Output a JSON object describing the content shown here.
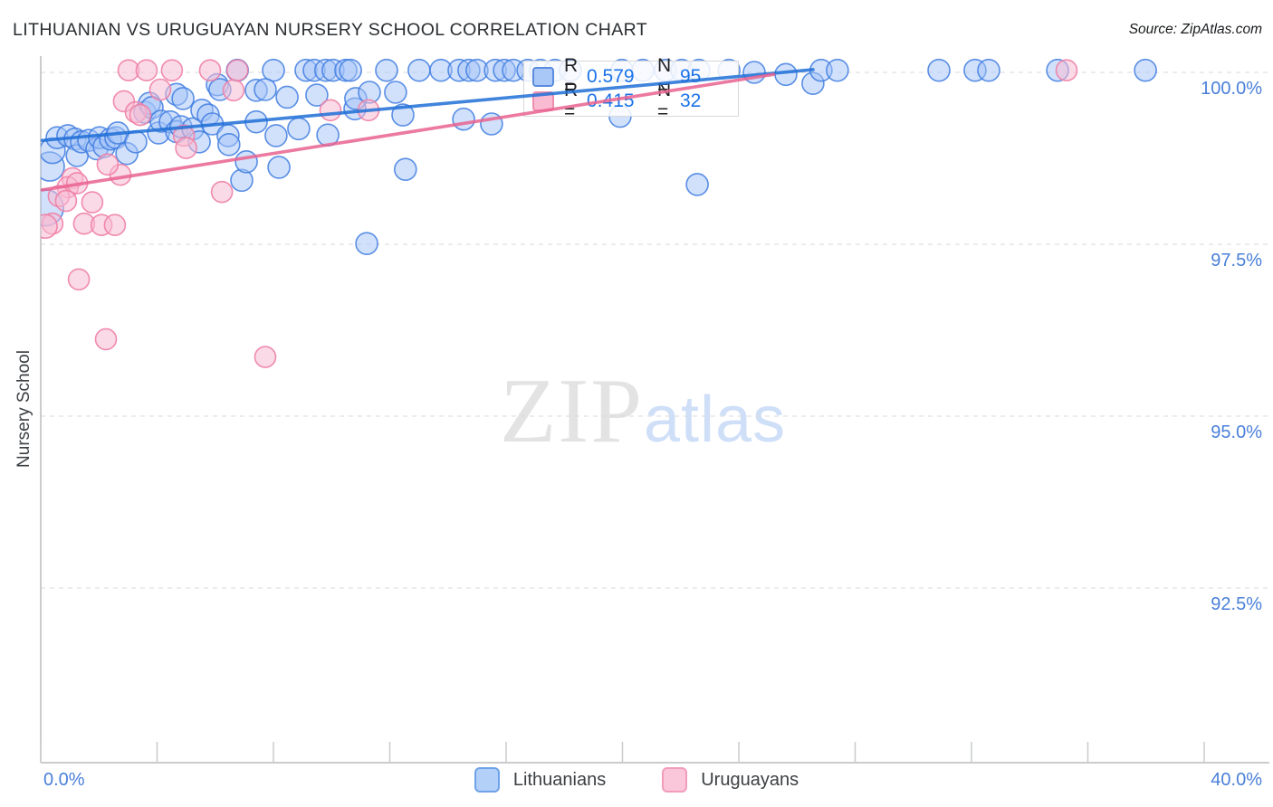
{
  "title": "LITHUANIAN VS URUGUAYAN NURSERY SCHOOL CORRELATION CHART",
  "source": "Source: ZipAtlas.com",
  "watermark": {
    "part1": "ZIP",
    "part2": "atlas"
  },
  "y_axis": {
    "label": "Nursery School",
    "tick_labels": [
      "100.0%",
      "97.5%",
      "95.0%",
      "92.5%"
    ],
    "tick_values": [
      100.0,
      97.5,
      95.0,
      92.5
    ]
  },
  "x_axis": {
    "min_label": "0.0%",
    "max_label": "40.0%",
    "min": 0,
    "max": 40,
    "tick_step": 4
  },
  "legend_box": {
    "rows": [
      {
        "series": "lithuanians",
        "r_label": "R =",
        "r_value": "0.579",
        "n_label": "N =",
        "n_value": "95"
      },
      {
        "series": "uruguayans",
        "r_label": "R =",
        "r_value": "0.415",
        "n_label": "N =",
        "n_value": "32"
      }
    ]
  },
  "bottom_legend": {
    "items": [
      {
        "label": "Lithuanians",
        "color": "#b3d0f9"
      },
      {
        "label": "Uruguayans",
        "color": "#fac6da"
      }
    ]
  },
  "colors": {
    "accent_blue": "#1a73e8",
    "tick_label_blue": "#4a80d9",
    "grid": "#d9dadc",
    "axis": "#babcbe"
  },
  "chart_data": {
    "type": "scatter",
    "title": "LITHUANIAN VS URUGUAYAN NURSERY SCHOOL CORRELATION CHART",
    "xlabel": "",
    "ylabel": "Nursery School",
    "xlim": [
      0,
      40
    ],
    "ylim": [
      90,
      100.3
    ],
    "x_units": "percent",
    "y_units": "percent",
    "grid": "horizontal-dashed",
    "legend_position": "top-center-overlay",
    "series": [
      {
        "name": "Lithuanians",
        "R": 0.579,
        "N": 95,
        "fill": "#a3c3f7",
        "fill_opacity": 0.5,
        "stroke": "#3f7ce0",
        "stroke_opacity": 0.85,
        "marker_radius": 12,
        "trend": {
          "x1": 0.05,
          "y1": 99.01,
          "x2": 26.55,
          "y2": 100.04,
          "color": "#1f6fd6"
        },
        "points": [
          [
            6.76,
            100.03
          ],
          [
            8.0,
            100.03
          ],
          [
            9.12,
            100.03
          ],
          [
            9.4,
            100.03
          ],
          [
            9.8,
            100.03
          ],
          [
            10.05,
            100.03
          ],
          [
            10.49,
            100.03
          ],
          [
            10.65,
            100.03
          ],
          [
            11.89,
            100.03
          ],
          [
            13.01,
            100.03
          ],
          [
            13.76,
            100.03
          ],
          [
            14.38,
            100.03
          ],
          [
            14.72,
            100.03
          ],
          [
            15.0,
            100.03
          ],
          [
            15.63,
            100.03
          ],
          [
            15.94,
            100.03
          ],
          [
            16.25,
            100.03
          ],
          [
            16.75,
            100.03
          ],
          [
            17.18,
            100.03
          ],
          [
            17.68,
            100.03
          ],
          [
            18.21,
            100.03
          ],
          [
            19.98,
            100.03
          ],
          [
            20.7,
            100.03
          ],
          [
            21.48,
            100.03
          ],
          [
            22.04,
            100.03
          ],
          [
            22.63,
            100.03
          ],
          [
            23.66,
            100.03
          ],
          [
            24.53,
            100.0
          ],
          [
            25.62,
            99.97
          ],
          [
            26.55,
            99.84
          ],
          [
            26.83,
            100.03
          ],
          [
            27.39,
            100.03
          ],
          [
            30.88,
            100.03
          ],
          [
            32.12,
            100.03
          ],
          [
            32.59,
            100.03
          ],
          [
            34.96,
            100.03
          ],
          [
            37.98,
            100.03
          ],
          [
            0.16,
            98.03,
            20
          ],
          [
            0.31,
            98.63,
            16
          ],
          [
            0.4,
            98.86,
            14
          ],
          [
            0.56,
            99.05
          ],
          [
            0.93,
            99.08
          ],
          [
            1.18,
            99.03
          ],
          [
            1.25,
            98.79
          ],
          [
            1.4,
            98.99
          ],
          [
            1.65,
            99.01
          ],
          [
            1.93,
            98.89
          ],
          [
            2.02,
            99.05
          ],
          [
            2.18,
            98.92
          ],
          [
            2.4,
            99.03
          ],
          [
            2.58,
            99.05
          ],
          [
            2.65,
            99.12
          ],
          [
            2.96,
            98.82
          ],
          [
            3.27,
            98.99
          ],
          [
            3.58,
            99.42
          ],
          [
            3.74,
            99.55
          ],
          [
            3.83,
            99.49
          ],
          [
            4.05,
            99.12
          ],
          [
            4.14,
            99.29
          ],
          [
            4.45,
            99.28
          ],
          [
            4.67,
            99.68
          ],
          [
            4.67,
            99.14
          ],
          [
            4.82,
            99.21
          ],
          [
            4.89,
            99.62
          ],
          [
            5.23,
            99.18
          ],
          [
            5.45,
            98.99
          ],
          [
            5.54,
            99.45
          ],
          [
            5.76,
            99.38
          ],
          [
            5.9,
            99.25
          ],
          [
            6.07,
            99.82
          ],
          [
            6.16,
            99.75
          ],
          [
            6.44,
            99.08
          ],
          [
            6.47,
            98.95
          ],
          [
            6.91,
            98.43
          ],
          [
            7.07,
            98.7
          ],
          [
            7.41,
            99.74
          ],
          [
            7.41,
            99.28
          ],
          [
            7.72,
            99.75
          ],
          [
            8.09,
            99.08
          ],
          [
            8.19,
            98.62
          ],
          [
            8.47,
            99.64
          ],
          [
            8.87,
            99.18
          ],
          [
            9.49,
            99.67
          ],
          [
            9.87,
            99.09
          ],
          [
            10.8,
            99.47
          ],
          [
            10.83,
            99.62
          ],
          [
            11.21,
            97.51
          ],
          [
            11.3,
            99.71
          ],
          [
            12.2,
            99.71
          ],
          [
            12.45,
            99.38
          ],
          [
            12.54,
            98.59
          ],
          [
            14.54,
            99.32
          ],
          [
            15.5,
            99.25
          ],
          [
            19.92,
            99.36
          ],
          [
            22.57,
            98.37
          ]
        ]
      },
      {
        "name": "Uruguayans",
        "R": 0.415,
        "N": 32,
        "fill": "#f8bcd4",
        "fill_opacity": 0.55,
        "stroke": "#ee7fa5",
        "stroke_opacity": 0.9,
        "marker_radius": 11.5,
        "trend": {
          "x1": 0.05,
          "y1": 98.29,
          "x2": 25.2,
          "y2": 99.97,
          "color": "#e9638f"
        },
        "points": [
          [
            3.02,
            100.03
          ],
          [
            3.64,
            100.03
          ],
          [
            4.51,
            100.03
          ],
          [
            5.82,
            100.03
          ],
          [
            6.76,
            100.03
          ],
          [
            35.27,
            100.03
          ],
          [
            2.86,
            99.58
          ],
          [
            3.27,
            99.42
          ],
          [
            3.42,
            99.38
          ],
          [
            4.11,
            99.75
          ],
          [
            6.63,
            99.74
          ],
          [
            9.96,
            99.45
          ],
          [
            11.27,
            99.45
          ],
          [
            2.74,
            98.51
          ],
          [
            4.92,
            99.08
          ],
          [
            5.0,
            98.9
          ],
          [
            6.23,
            98.26
          ],
          [
            1.09,
            98.46
          ],
          [
            0.93,
            98.33
          ],
          [
            1.25,
            98.39
          ],
          [
            0.62,
            98.2
          ],
          [
            0.87,
            98.13
          ],
          [
            1.77,
            98.11
          ],
          [
            1.49,
            97.8
          ],
          [
            2.09,
            97.78
          ],
          [
            2.55,
            97.78
          ],
          [
            0.4,
            97.8
          ],
          [
            0.16,
            97.76,
            13
          ],
          [
            2.3,
            98.66
          ],
          [
            1.31,
            96.99
          ],
          [
            2.24,
            96.12
          ],
          [
            7.72,
            95.86
          ]
        ]
      }
    ]
  }
}
